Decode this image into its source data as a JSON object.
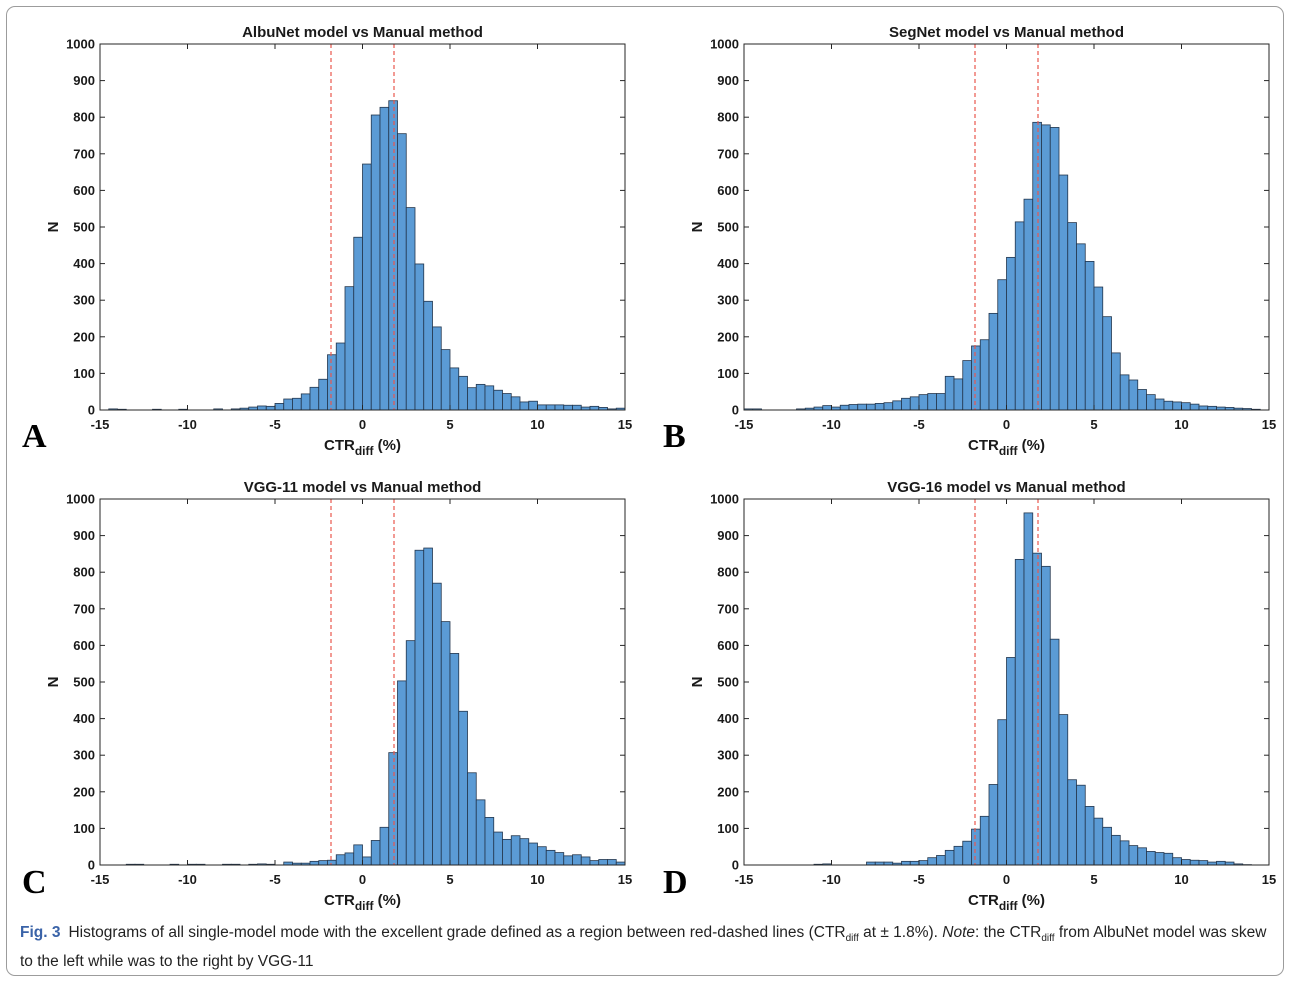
{
  "caption": {
    "label": "Fig. 3",
    "text1": "Histograms of all single-model mode with the excellent grade defined as a region between red-dashed lines (CTR",
    "sub1": "diff",
    "text2": " at ± 1.8%). ",
    "note_word": "Note",
    "text3": ": the CTR",
    "sub2": "diff",
    "text4": " from AlbuNet model was skew to the left while was to the right by VGG-11"
  },
  "colors": {
    "bar": "#5b9bd5",
    "bar_edge": "#23364d",
    "threshold": "#e8584e"
  },
  "chart_data": [
    {
      "type": "bar",
      "panel": "A",
      "title": "AlbuNet model vs Manual method",
      "xlabel": "CTR",
      "xlabel_sub": "diff",
      "xlabel_suffix": " (%)",
      "ylabel": "N",
      "xlim": [
        -15,
        15
      ],
      "ylim": [
        0,
        1000
      ],
      "xticks": [
        -15,
        -10,
        -5,
        0,
        5,
        10,
        15
      ],
      "yticks": [
        0,
        100,
        200,
        300,
        400,
        500,
        600,
        700,
        800,
        900,
        1000
      ],
      "bin_width": 0.5,
      "bin_start": -15,
      "threshold_lines": [
        -1.8,
        1.8
      ],
      "values": [
        0,
        3,
        2,
        0,
        0,
        0,
        2,
        0,
        0,
        2,
        0,
        0,
        0,
        3,
        0,
        3,
        5,
        8,
        11,
        10,
        18,
        30,
        32,
        44,
        62,
        84,
        151,
        183,
        337,
        472,
        672,
        806,
        827,
        845,
        755,
        553,
        399,
        297,
        227,
        165,
        115,
        92,
        61,
        70,
        66,
        54,
        45,
        36,
        22,
        24,
        14,
        14,
        14,
        13,
        13,
        8,
        10,
        7,
        3,
        5
      ]
    },
    {
      "type": "bar",
      "panel": "B",
      "title": "SegNet model vs Manual method",
      "xlabel": "CTR",
      "xlabel_sub": "diff",
      "xlabel_suffix": " (%)",
      "ylabel": "N",
      "xlim": [
        -15,
        15
      ],
      "ylim": [
        0,
        1000
      ],
      "xticks": [
        -15,
        -10,
        -5,
        0,
        5,
        10,
        15
      ],
      "yticks": [
        0,
        100,
        200,
        300,
        400,
        500,
        600,
        700,
        800,
        900,
        1000
      ],
      "bin_width": 0.5,
      "bin_start": -15,
      "threshold_lines": [
        -1.8,
        1.8
      ],
      "values": [
        3,
        3,
        0,
        0,
        0,
        0,
        3,
        5,
        8,
        12,
        8,
        13,
        15,
        16,
        16,
        18,
        20,
        25,
        32,
        36,
        42,
        45,
        45,
        92,
        85,
        135,
        175,
        192,
        264,
        356,
        417,
        514,
        576,
        786,
        779,
        772,
        642,
        512,
        454,
        406,
        336,
        255,
        156,
        96,
        82,
        56,
        42,
        30,
        24,
        22,
        20,
        16,
        11,
        10,
        8,
        7,
        5,
        4,
        2,
        0
      ]
    },
    {
      "type": "bar",
      "panel": "C",
      "title": "VGG-11 model vs Manual method",
      "xlabel": "CTR",
      "xlabel_sub": "diff",
      "xlabel_suffix": " (%)",
      "ylabel": "N",
      "xlim": [
        -15,
        15
      ],
      "ylim": [
        0,
        1000
      ],
      "xticks": [
        -15,
        -10,
        -5,
        0,
        5,
        10,
        15
      ],
      "yticks": [
        0,
        100,
        200,
        300,
        400,
        500,
        600,
        700,
        800,
        900,
        1000
      ],
      "bin_width": 0.5,
      "bin_start": -15,
      "threshold_lines": [
        -1.8,
        1.8
      ],
      "values": [
        0,
        0,
        0,
        2,
        2,
        0,
        0,
        0,
        2,
        0,
        2,
        2,
        0,
        0,
        2,
        2,
        0,
        2,
        3,
        2,
        0,
        8,
        5,
        5,
        10,
        12,
        13,
        28,
        33,
        55,
        22,
        67,
        103,
        307,
        503,
        613,
        860,
        866,
        770,
        665,
        578,
        420,
        252,
        178,
        130,
        90,
        70,
        80,
        72,
        60,
        50,
        40,
        34,
        25,
        28,
        22,
        12,
        15,
        15,
        8
      ]
    },
    {
      "type": "bar",
      "panel": "D",
      "title": "VGG-16 model vs Manual method",
      "xlabel": "CTR",
      "xlabel_sub": "diff",
      "xlabel_suffix": " (%)",
      "ylabel": "N",
      "xlim": [
        -15,
        15
      ],
      "ylim": [
        0,
        1000
      ],
      "xticks": [
        -15,
        -10,
        -5,
        0,
        5,
        10,
        15
      ],
      "yticks": [
        0,
        100,
        200,
        300,
        400,
        500,
        600,
        700,
        800,
        900,
        1000
      ],
      "bin_width": 0.5,
      "bin_start": -15,
      "threshold_lines": [
        -1.8,
        1.8
      ],
      "values": [
        0,
        0,
        0,
        0,
        0,
        0,
        0,
        0,
        2,
        3,
        0,
        0,
        0,
        0,
        8,
        8,
        8,
        5,
        10,
        10,
        12,
        20,
        26,
        40,
        51,
        65,
        98,
        133,
        220,
        397,
        567,
        835,
        962,
        852,
        816,
        617,
        411,
        233,
        218,
        160,
        128,
        103,
        81,
        66,
        53,
        47,
        37,
        34,
        32,
        20,
        15,
        13,
        12,
        8,
        10,
        8,
        3,
        1,
        0,
        0
      ]
    }
  ]
}
